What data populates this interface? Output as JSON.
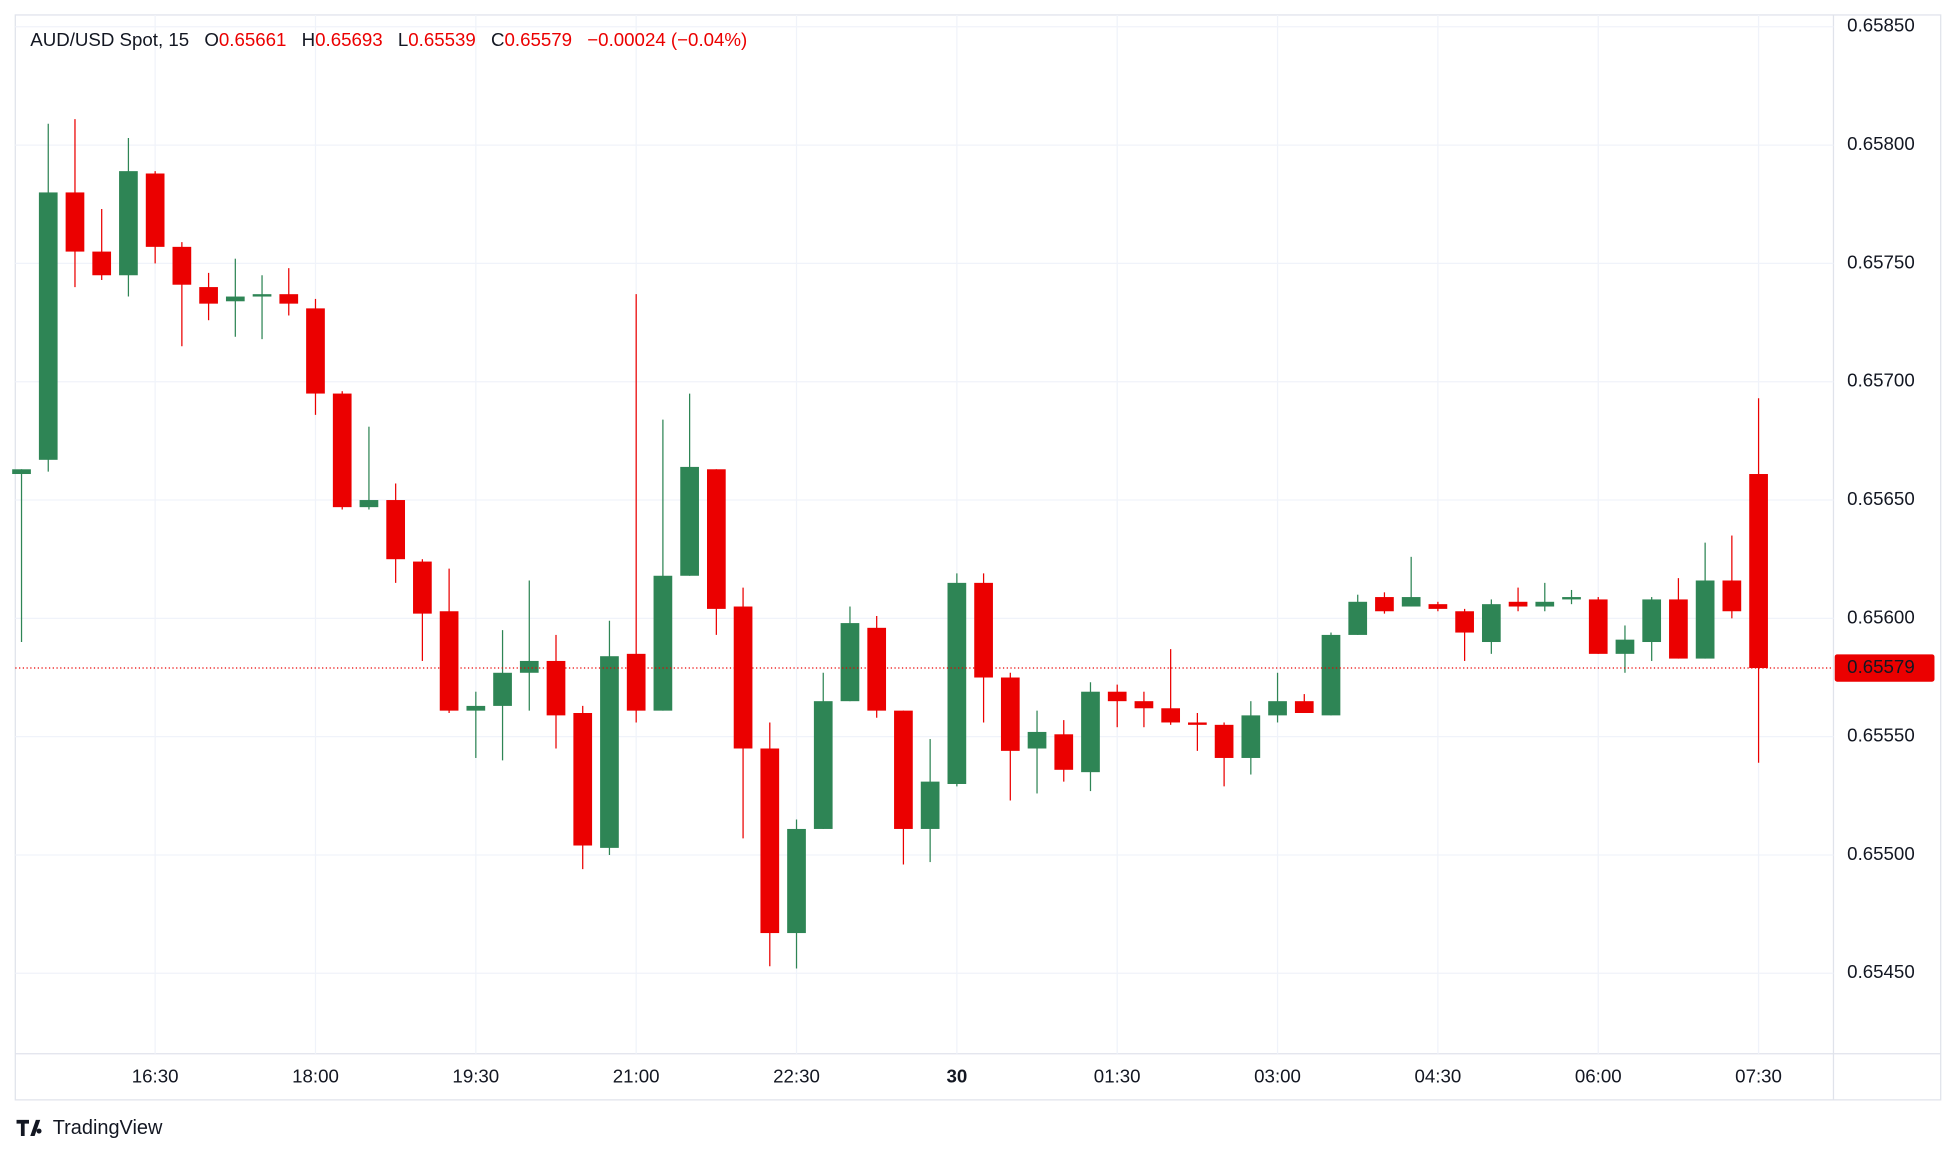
{
  "chart_data": {
    "type": "candlestick",
    "title": "AUD/USD Spot, 15",
    "ohlc_labels": [
      "O",
      "H",
      "L",
      "C"
    ],
    "change_label": "−0.00024 (−0.04%)",
    "branding": "TradingView",
    "up_color": "#2e8555",
    "down_color": "#eb0000",
    "grid": true,
    "ylim": [
      0.65416,
      0.65855
    ],
    "yticks": [
      {
        "value": 0.6545,
        "label": "0.65450"
      },
      {
        "value": 0.655,
        "label": "0.65500"
      },
      {
        "value": 0.6555,
        "label": "0.65550"
      },
      {
        "value": 0.656,
        "label": "0.65600"
      },
      {
        "value": 0.6565,
        "label": "0.65650"
      },
      {
        "value": 0.657,
        "label": "0.65700"
      },
      {
        "value": 0.6575,
        "label": "0.65750"
      },
      {
        "value": 0.658,
        "label": "0.65800"
      },
      {
        "value": 0.6585,
        "label": "0.65850"
      }
    ],
    "categories": [
      null,
      null,
      null,
      null,
      null,
      "16:30",
      null,
      null,
      null,
      null,
      null,
      "18:00",
      null,
      null,
      null,
      null,
      null,
      "19:30",
      null,
      null,
      null,
      null,
      null,
      "21:00",
      null,
      null,
      null,
      null,
      null,
      "22:30",
      null,
      null,
      null,
      null,
      null,
      "30",
      null,
      null,
      null,
      null,
      null,
      "01:30",
      null,
      null,
      null,
      null,
      null,
      "03:00",
      null,
      null,
      null,
      null,
      null,
      "04:30",
      null,
      null,
      null,
      null,
      null,
      "06:00",
      null,
      null,
      null,
      null,
      null,
      "07:30"
    ],
    "open": [
      0.65661,
      0.65667,
      0.6578,
      0.65755,
      0.65745,
      0.65788,
      0.65757,
      0.6574,
      0.65734,
      0.65736,
      0.65737,
      0.65731,
      0.65695,
      0.65647,
      0.6565,
      0.65624,
      0.65603,
      0.65561,
      0.65563,
      0.65577,
      0.65582,
      0.6556,
      0.65503,
      0.65585,
      0.65561,
      0.65618,
      0.65663,
      0.65605,
      0.65545,
      0.65467,
      0.65511,
      0.65565,
      0.65596,
      0.65561,
      0.65511,
      0.6553,
      0.65615,
      0.65575,
      0.65545,
      0.65551,
      0.65535,
      0.65569,
      0.65565,
      0.65562,
      0.65556,
      0.65555,
      0.65541,
      0.65559,
      0.65565,
      0.65559,
      0.65593,
      0.65609,
      0.65605,
      0.65606,
      0.65603,
      0.6559,
      0.65607,
      0.65605,
      0.65608,
      0.65608,
      0.65585,
      0.6559,
      0.65608,
      0.65583,
      0.65616,
      0.65661
    ],
    "high": [
      0.65663,
      0.65809,
      0.65811,
      0.65773,
      0.65803,
      0.65789,
      0.65759,
      0.65746,
      0.65752,
      0.65745,
      0.65748,
      0.65735,
      0.65696,
      0.65681,
      0.65657,
      0.65625,
      0.65621,
      0.65569,
      0.65595,
      0.65616,
      0.65593,
      0.65563,
      0.65599,
      0.65737,
      0.65684,
      0.65695,
      0.65663,
      0.65613,
      0.65556,
      0.65515,
      0.65577,
      0.65605,
      0.65601,
      0.65561,
      0.65549,
      0.65619,
      0.65619,
      0.65577,
      0.65561,
      0.65557,
      0.65573,
      0.65572,
      0.65569,
      0.65587,
      0.6556,
      0.65556,
      0.65565,
      0.65577,
      0.65568,
      0.65594,
      0.6561,
      0.65611,
      0.65626,
      0.65607,
      0.65604,
      0.65608,
      0.65613,
      0.65615,
      0.65612,
      0.65609,
      0.65597,
      0.65609,
      0.65617,
      0.65632,
      0.65635,
      0.65693
    ],
    "low": [
      0.6559,
      0.65662,
      0.6574,
      0.65743,
      0.65736,
      0.6575,
      0.65715,
      0.65726,
      0.65719,
      0.65718,
      0.65728,
      0.65686,
      0.65646,
      0.65646,
      0.65615,
      0.65582,
      0.6556,
      0.65541,
      0.6554,
      0.65561,
      0.65545,
      0.65494,
      0.655,
      0.65556,
      0.65561,
      0.65618,
      0.65593,
      0.65507,
      0.65453,
      0.65452,
      0.65511,
      0.65565,
      0.65558,
      0.65496,
      0.65497,
      0.65529,
      0.65556,
      0.65523,
      0.65526,
      0.65531,
      0.65527,
      0.65554,
      0.65554,
      0.65555,
      0.65544,
      0.65529,
      0.65534,
      0.65556,
      0.6556,
      0.65559,
      0.65593,
      0.65602,
      0.65605,
      0.65603,
      0.65582,
      0.65585,
      0.65603,
      0.65603,
      0.65606,
      0.65585,
      0.65577,
      0.65582,
      0.65583,
      0.65583,
      0.656,
      0.65539
    ],
    "close": [
      0.65663,
      0.6578,
      0.65755,
      0.65745,
      0.65789,
      0.65757,
      0.65741,
      0.65733,
      0.65736,
      0.65737,
      0.65733,
      0.65695,
      0.65647,
      0.6565,
      0.65625,
      0.65602,
      0.65561,
      0.65563,
      0.65577,
      0.65582,
      0.65559,
      0.65504,
      0.65584,
      0.65561,
      0.65618,
      0.65664,
      0.65604,
      0.65545,
      0.65467,
      0.65511,
      0.65565,
      0.65598,
      0.65561,
      0.65511,
      0.65531,
      0.65615,
      0.65575,
      0.65544,
      0.65552,
      0.65536,
      0.65569,
      0.65565,
      0.65562,
      0.65556,
      0.65555,
      0.65541,
      0.65559,
      0.65565,
      0.6556,
      0.65593,
      0.65607,
      0.65603,
      0.65609,
      0.65604,
      0.65594,
      0.65606,
      0.65605,
      0.65607,
      0.65609,
      0.65585,
      0.65591,
      0.65608,
      0.65583,
      0.65616,
      0.65603,
      0.65579
    ]
  }
}
